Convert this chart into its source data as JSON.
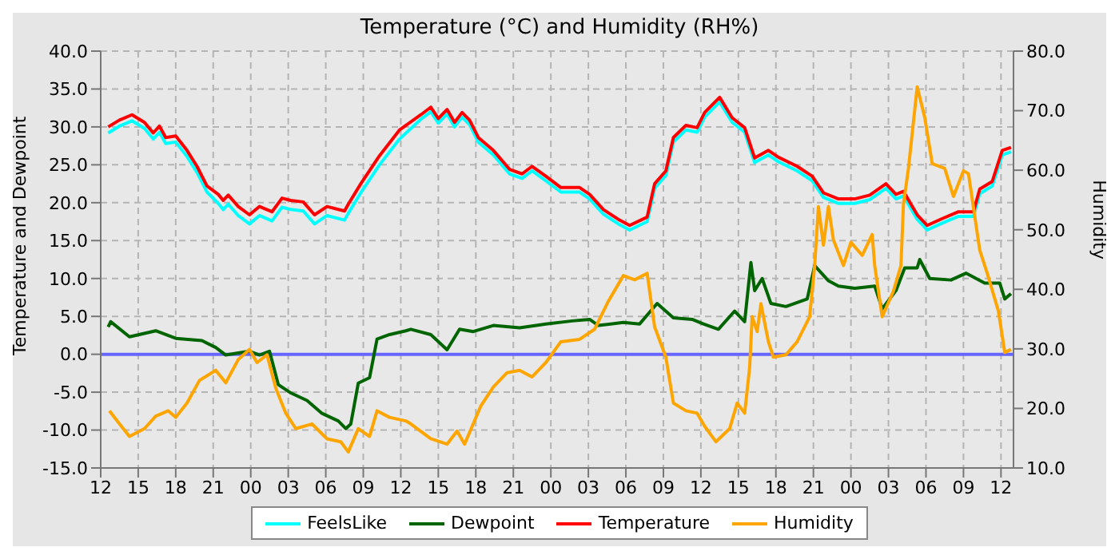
{
  "chart_data": {
    "type": "line",
    "title": "Temperature (°C) and Humidity (RH%)",
    "ylabel": "Temperature and Dewpoint",
    "y2label": "Humidity",
    "xlim": [
      12,
      85
    ],
    "xticks": [
      {
        "value": 12,
        "label": "12"
      },
      {
        "value": 15,
        "label": "15"
      },
      {
        "value": 18,
        "label": "18"
      },
      {
        "value": 21,
        "label": "21"
      },
      {
        "value": 24,
        "label": "00"
      },
      {
        "value": 27,
        "label": "03"
      },
      {
        "value": 30,
        "label": "06"
      },
      {
        "value": 33,
        "label": "09"
      },
      {
        "value": 36,
        "label": "12"
      },
      {
        "value": 39,
        "label": "15"
      },
      {
        "value": 42,
        "label": "18"
      },
      {
        "value": 45,
        "label": "21"
      },
      {
        "value": 48,
        "label": "00"
      },
      {
        "value": 51,
        "label": "03"
      },
      {
        "value": 54,
        "label": "06"
      },
      {
        "value": 57,
        "label": "09"
      },
      {
        "value": 60,
        "label": "12"
      },
      {
        "value": 63,
        "label": "15"
      },
      {
        "value": 66,
        "label": "18"
      },
      {
        "value": 69,
        "label": "21"
      },
      {
        "value": 72,
        "label": "00"
      },
      {
        "value": 75,
        "label": "03"
      },
      {
        "value": 78,
        "label": "06"
      },
      {
        "value": 81,
        "label": "09"
      },
      {
        "value": 84,
        "label": "12"
      }
    ],
    "ylim": [
      -15,
      40
    ],
    "yticks": [
      {
        "value": -15,
        "label": "-15.0"
      },
      {
        "value": -10,
        "label": "-10.0"
      },
      {
        "value": -5,
        "label": "-5.0"
      },
      {
        "value": 0,
        "label": "0.0"
      },
      {
        "value": 5,
        "label": "5.0"
      },
      {
        "value": 10,
        "label": "10.0"
      },
      {
        "value": 15,
        "label": "15.0"
      },
      {
        "value": 20,
        "label": "20.0"
      },
      {
        "value": 25,
        "label": "25.0"
      },
      {
        "value": 30,
        "label": "30.0"
      },
      {
        "value": 35,
        "label": "35.0"
      },
      {
        "value": 40,
        "label": "40.0"
      }
    ],
    "y2lim": [
      10,
      80
    ],
    "y2ticks": [
      {
        "value": 10,
        "label": "10.0"
      },
      {
        "value": 20,
        "label": "20.0"
      },
      {
        "value": 30,
        "label": "30.0"
      },
      {
        "value": 40,
        "label": "40.0"
      },
      {
        "value": 50,
        "label": "50.0"
      },
      {
        "value": 60,
        "label": "60.0"
      },
      {
        "value": 70,
        "label": "70.0"
      },
      {
        "value": 80,
        "label": "80.0"
      }
    ],
    "grid": true,
    "legend": "bottom",
    "marker": "none",
    "line_style": "solid",
    "ref_lines": [
      {
        "axis": "y",
        "value": 0,
        "color": "#6666ff"
      }
    ],
    "series": [
      {
        "name": "FeelsLike",
        "color": "#00ffff",
        "x": [
          12.6,
          13.5,
          14.5,
          15.5,
          16.2,
          16.7,
          17.2,
          18,
          18.9,
          19.7,
          20.5,
          21.4,
          21.8,
          22.2,
          23,
          23.9,
          24.7,
          25.7,
          26.5,
          27.2,
          28.2,
          29.1,
          30.1,
          31.5,
          31.8,
          32.8,
          34.3,
          35.9,
          37.6,
          38.4,
          39,
          39.7,
          40.3,
          40.9,
          41.5,
          42.2,
          43.4,
          44.7,
          45.7,
          46.5,
          47.6,
          48.8,
          50.3,
          51.1,
          52.2,
          53.4,
          54.3,
          55.7,
          56.3,
          57.2,
          57.8,
          58.8,
          59.7,
          60.3,
          61.5,
          62.5,
          63.5,
          64.3,
          65.4,
          66.2,
          67.7,
          68.9,
          69.8,
          71,
          72.3,
          73.5,
          74.8,
          75.6,
          76.2,
          77.3,
          78.1,
          79.3,
          80.6,
          81.8,
          82.3,
          83.3,
          84.1,
          84.8
        ],
        "values": [
          29.2,
          30.1,
          30.8,
          29.8,
          28.4,
          29.3,
          27.8,
          28.0,
          26.1,
          24.0,
          21.4,
          19.9,
          19.1,
          19.8,
          18.3,
          17.2,
          18.3,
          17.6,
          19.4,
          19.1,
          18.9,
          17.2,
          18.3,
          17.7,
          18.6,
          21.3,
          25.0,
          28.4,
          31.0,
          32.0,
          30.5,
          31.7,
          30.0,
          31.3,
          30.3,
          28.0,
          26.3,
          23.8,
          23.2,
          24.2,
          22.9,
          21.4,
          21.4,
          20.5,
          18.5,
          17.2,
          16.4,
          17.5,
          21.9,
          23.6,
          28.0,
          29.6,
          29.3,
          31.3,
          33.3,
          30.6,
          29.3,
          25.3,
          26.3,
          25.4,
          24.2,
          22.9,
          20.7,
          19.9,
          19.9,
          20.4,
          21.9,
          20.5,
          20.9,
          17.8,
          16.4,
          17.3,
          18.2,
          18.2,
          21.2,
          22.2,
          26.3,
          26.7
        ]
      },
      {
        "name": "Dewpoint",
        "color": "#006400",
        "x": [
          12.6,
          12.8,
          14.3,
          16.4,
          18.0,
          20.1,
          21.2,
          22.0,
          23.9,
          24.7,
          25.5,
          26.2,
          27.2,
          28.5,
          29.7,
          31.0,
          31.6,
          32.0,
          32.6,
          33.5,
          34.1,
          35.1,
          36.4,
          36.8,
          38.4,
          39.7,
          40.7,
          41.8,
          43.4,
          45.5,
          47.6,
          49.7,
          51.1,
          51.8,
          53.8,
          55.1,
          56.5,
          57.8,
          59.3,
          60.2,
          61.4,
          62.7,
          63.5,
          64.0,
          64.3,
          64.9,
          65.6,
          66.8,
          68.5,
          69.1,
          70.2,
          71.0,
          72.3,
          73.9,
          74.5,
          75.6,
          76.3,
          77.3,
          77.5,
          78.3,
          80.0,
          81.2,
          82.7,
          83.9,
          84.3,
          84.8
        ],
        "values": [
          3.6,
          4.3,
          2.3,
          3.1,
          2.1,
          1.8,
          0.9,
          -0.1,
          0.4,
          -0.1,
          0.4,
          -4.0,
          -5.1,
          -6.1,
          -7.8,
          -8.8,
          -9.8,
          -9.2,
          -3.8,
          -3.1,
          2.0,
          2.6,
          3.1,
          3.3,
          2.6,
          0.6,
          3.3,
          3.0,
          3.8,
          3.5,
          4.0,
          4.4,
          4.6,
          3.8,
          4.2,
          4.0,
          6.7,
          4.8,
          4.6,
          4.0,
          3.3,
          5.7,
          4.3,
          12.1,
          8.4,
          10.0,
          6.7,
          6.3,
          7.3,
          11.7,
          9.7,
          9.0,
          8.7,
          9.0,
          6.0,
          8.4,
          11.4,
          11.4,
          12.5,
          10.0,
          9.8,
          10.7,
          9.4,
          9.4,
          7.3,
          8.0
        ]
      },
      {
        "name": "Temperature",
        "color": "#ff0000",
        "x": [
          12.6,
          13.5,
          14.5,
          15.5,
          16.2,
          16.7,
          17.2,
          18,
          18.9,
          19.7,
          20.5,
          21.4,
          21.8,
          22.2,
          23,
          23.9,
          24.7,
          25.7,
          26.5,
          27.2,
          28.2,
          29.1,
          30.1,
          31.5,
          31.8,
          32.8,
          34.3,
          35.9,
          37.6,
          38.4,
          39,
          39.7,
          40.3,
          40.9,
          41.5,
          42.2,
          43.4,
          44.7,
          45.7,
          46.5,
          47.6,
          48.8,
          50.3,
          51.1,
          52.2,
          53.4,
          54.3,
          55.7,
          56.3,
          57.2,
          57.8,
          58.8,
          59.7,
          60.3,
          61.5,
          62.5,
          63.5,
          64.3,
          65.4,
          66.2,
          67.7,
          68.9,
          69.8,
          71,
          72.3,
          73.5,
          74.8,
          75.6,
          76.2,
          77.3,
          78.1,
          79.3,
          80.6,
          81.8,
          82.3,
          83.3,
          84.1,
          84.8
        ],
        "values": [
          30.0,
          30.9,
          31.6,
          30.6,
          29.2,
          30.1,
          28.6,
          28.8,
          26.9,
          24.8,
          22.2,
          21.1,
          20.3,
          21.0,
          19.5,
          18.4,
          19.5,
          18.8,
          20.6,
          20.3,
          20.1,
          18.4,
          19.5,
          18.9,
          19.8,
          22.5,
          26.2,
          29.6,
          31.6,
          32.6,
          31.1,
          32.3,
          30.6,
          31.9,
          30.9,
          28.6,
          26.9,
          24.4,
          23.8,
          24.8,
          23.5,
          22.0,
          22.0,
          21.1,
          19.1,
          17.8,
          17.0,
          18.1,
          22.5,
          24.2,
          28.6,
          30.2,
          29.9,
          31.9,
          33.9,
          31.2,
          29.9,
          25.9,
          26.9,
          26.0,
          24.8,
          23.5,
          21.3,
          20.5,
          20.5,
          21.0,
          22.5,
          21.1,
          21.5,
          18.4,
          17.0,
          17.9,
          18.8,
          18.8,
          21.8,
          22.8,
          26.9,
          27.3
        ]
      },
      {
        "name": "Humidity",
        "color": "#ffa500",
        "axis": "y2",
        "x": [
          12.7,
          13.5,
          14.3,
          15.5,
          16.4,
          17.4,
          18.0,
          18.9,
          19.9,
          21.2,
          22.0,
          23.0,
          23.9,
          24.5,
          25.3,
          26.0,
          26.8,
          27.6,
          28.9,
          30.1,
          31.2,
          31.8,
          32.6,
          33.5,
          34.1,
          35.1,
          36.4,
          36.8,
          38.4,
          39.7,
          40.5,
          41.1,
          42.4,
          43.4,
          44.5,
          45.5,
          46.5,
          47.6,
          48.8,
          50.3,
          51.5,
          52.6,
          53.8,
          54.7,
          55.7,
          56.3,
          57.2,
          57.8,
          58.8,
          59.7,
          60.3,
          61.2,
          62.3,
          62.9,
          63.5,
          63.9,
          64.1,
          64.5,
          64.8,
          65.4,
          65.8,
          66.8,
          67.7,
          68.7,
          69.1,
          69.4,
          69.8,
          70.2,
          70.6,
          71.4,
          72.0,
          72.9,
          73.7,
          73.9,
          74.5,
          75.4,
          76.0,
          76.2,
          76.6,
          77.3,
          77.9,
          78.5,
          79.5,
          80.2,
          81.0,
          81.4,
          82.3,
          82.9,
          83.8,
          84.3,
          84.8
        ],
        "values": [
          19.6,
          17.4,
          15.3,
          16.6,
          18.7,
          19.6,
          18.5,
          20.9,
          24.7,
          26.4,
          24.3,
          28.2,
          29.9,
          27.7,
          29.0,
          23.4,
          19.2,
          16.6,
          17.4,
          14.9,
          14.4,
          12.7,
          16.6,
          15.3,
          19.6,
          18.5,
          17.9,
          17.4,
          14.9,
          14.0,
          16.2,
          14.0,
          20.4,
          23.6,
          26.0,
          26.4,
          25.3,
          27.7,
          31.2,
          31.6,
          33.3,
          38.0,
          42.3,
          41.6,
          42.7,
          33.7,
          28.6,
          20.9,
          19.6,
          19.2,
          17.0,
          14.4,
          16.6,
          20.9,
          19.2,
          26.9,
          35.4,
          32.9,
          37.6,
          31.2,
          28.6,
          29.0,
          31.2,
          35.4,
          44.0,
          53.9,
          47.4,
          53.9,
          48.3,
          44.0,
          47.9,
          45.7,
          49.2,
          44.0,
          35.4,
          39.7,
          44.0,
          54.3,
          60.3,
          74.0,
          68.9,
          61.1,
          60.3,
          55.6,
          59.9,
          59.4,
          46.6,
          42.7,
          36.3,
          29.4,
          29.9
        ]
      }
    ]
  }
}
